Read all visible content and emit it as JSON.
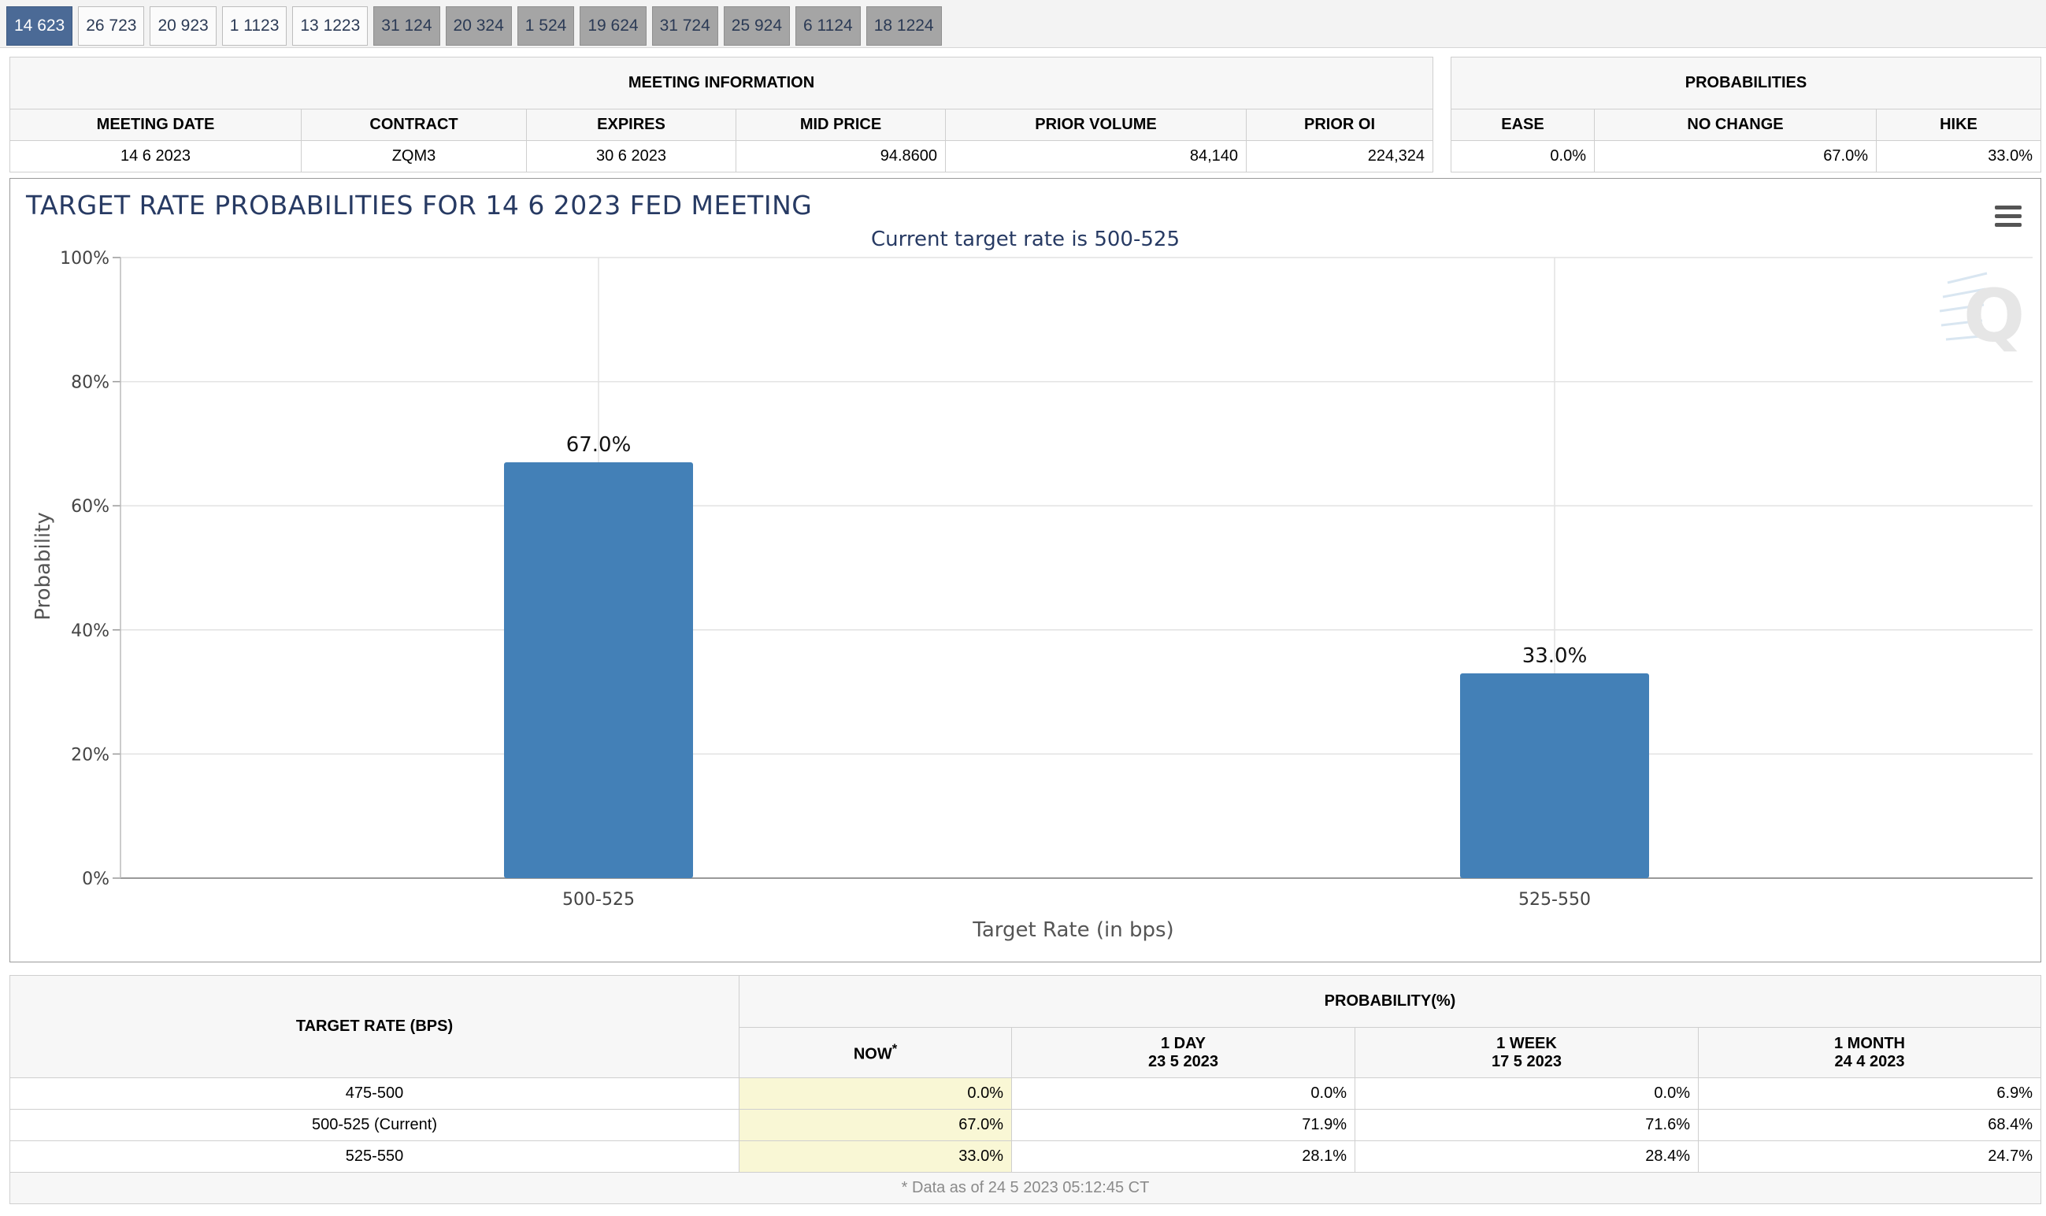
{
  "tabs": [
    {
      "label": "14 623",
      "state": "active"
    },
    {
      "label": "26 723",
      "state": "normal"
    },
    {
      "label": "20 923",
      "state": "normal"
    },
    {
      "label": "1 1123",
      "state": "normal"
    },
    {
      "label": "13 1223",
      "state": "normal"
    },
    {
      "label": "31 124",
      "state": "inactive"
    },
    {
      "label": "20 324",
      "state": "inactive"
    },
    {
      "label": "1 524",
      "state": "inactive"
    },
    {
      "label": "19 624",
      "state": "inactive"
    },
    {
      "label": "31 724",
      "state": "inactive"
    },
    {
      "label": "25 924",
      "state": "inactive"
    },
    {
      "label": "6 1124",
      "state": "inactive"
    },
    {
      "label": "18 1224",
      "state": "inactive"
    }
  ],
  "meeting": {
    "header": "MEETING INFORMATION",
    "columns": [
      "MEETING DATE",
      "CONTRACT",
      "EXPIRES",
      "MID PRICE",
      "PRIOR VOLUME",
      "PRIOR OI"
    ],
    "values": [
      "14 6 2023",
      "ZQM3",
      "30 6 2023",
      "94.8600",
      "84,140",
      "224,324"
    ]
  },
  "probabilities": {
    "header": "PROBABILITIES",
    "columns": [
      "EASE",
      "NO CHANGE",
      "HIKE"
    ],
    "values": [
      "0.0%",
      "67.0%",
      "33.0%"
    ]
  },
  "chart_data": {
    "type": "bar",
    "title": "TARGET RATE PROBABILITIES FOR 14 6 2023 FED MEETING",
    "subtitle": "Current target rate is 500-525",
    "categories": [
      "500-525",
      "525-550"
    ],
    "values": [
      67.0,
      33.0
    ],
    "data_labels": [
      "67.0%",
      "33.0%"
    ],
    "xlabel": "Target Rate (in bps)",
    "ylabel": "Probability",
    "ylim": [
      0,
      100
    ],
    "yticks": [
      0,
      20,
      40,
      60,
      80,
      100
    ],
    "ytick_labels": [
      "0%",
      "20%",
      "40%",
      "60%",
      "80%",
      "100%"
    ],
    "bar_color": "#4380b7",
    "grid": true
  },
  "prob_table": {
    "rate_header": "TARGET RATE (BPS)",
    "prob_header": "PROBABILITY(%)",
    "columns": [
      {
        "label": "NOW",
        "marker": "*",
        "date": ""
      },
      {
        "label": "1 DAY",
        "date": "23 5 2023"
      },
      {
        "label": "1 WEEK",
        "date": "17 5 2023"
      },
      {
        "label": "1 MONTH",
        "date": "24 4 2023"
      }
    ],
    "rows": [
      {
        "rate": "475-500",
        "values": [
          "0.0%",
          "0.0%",
          "0.0%",
          "6.9%"
        ]
      },
      {
        "rate": "500-525 (Current)",
        "values": [
          "67.0%",
          "71.9%",
          "71.6%",
          "68.4%"
        ]
      },
      {
        "rate": "525-550",
        "values": [
          "33.0%",
          "28.1%",
          "28.4%",
          "24.7%"
        ]
      }
    ],
    "footnote": "* Data as of 24 5 2023 05:12:45 CT"
  }
}
